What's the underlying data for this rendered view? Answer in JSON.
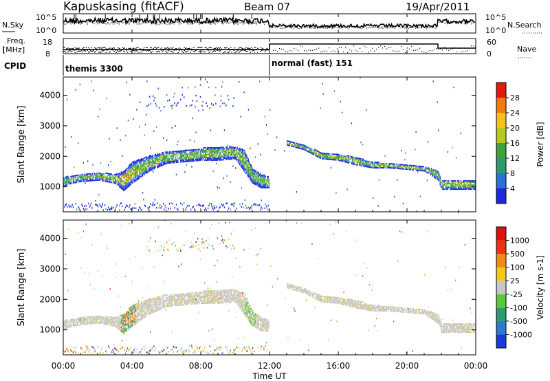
{
  "header": {
    "station": "Kapuskasing (fitACF)",
    "beam": "Beam 07",
    "date": "19/Apr/2011"
  },
  "top_panels": {
    "nsky_label": "N.Sky",
    "nsearch_label": "N.Search",
    "noise_ticks": [
      "10^5",
      "10^0"
    ],
    "freq_label": "Freq.",
    "freq_unit": "[MHz]",
    "freq_ticks": [
      "18",
      "8"
    ],
    "nave_label": "Nave",
    "nave_ticks": [
      "60",
      "0"
    ],
    "cpid_label": "CPID",
    "cpid_1": "themis 3300",
    "cpid_2": "normal (fast) 151"
  },
  "chart_data": [
    {
      "type": "heatmap",
      "name": "power",
      "ylabel": "Slant Range [km]",
      "yticks": [
        1000,
        2000,
        3000,
        4000
      ],
      "ylim": [
        180,
        4600
      ],
      "xlim": [
        0,
        24
      ],
      "colorbar_label": "Power [dB]",
      "colorbar_ticks": [
        "4",
        "8",
        "12",
        "16",
        "20",
        "24",
        "28"
      ],
      "colorbar_colors": [
        "#1e28d6",
        "#2b6fd8",
        "#2f9a6e",
        "#3fa03c",
        "#b7c91c",
        "#f2c21e",
        "#f07a14",
        "#e21a10"
      ],
      "band": [
        [
          0.0,
          1300,
          1000
        ],
        [
          0.5,
          1350,
          1100
        ],
        [
          1.0,
          1400,
          1150
        ],
        [
          2.0,
          1450,
          1200
        ],
        [
          3.0,
          1400,
          1100
        ],
        [
          3.5,
          1500,
          850
        ],
        [
          4.0,
          1800,
          1100
        ],
        [
          5.0,
          2000,
          1500
        ],
        [
          6.0,
          2150,
          1750
        ],
        [
          7.0,
          2200,
          1800
        ],
        [
          8.0,
          2250,
          1850
        ],
        [
          9.0,
          2300,
          1850
        ],
        [
          10.0,
          2300,
          1900
        ],
        [
          10.5,
          2200,
          1500
        ],
        [
          11.0,
          1600,
          1100
        ],
        [
          11.5,
          1400,
          950
        ],
        [
          12.0,
          1300,
          950
        ]
      ],
      "band2": [
        [
          13.0,
          2500,
          2350
        ],
        [
          14.0,
          2350,
          2200
        ],
        [
          15.0,
          2100,
          1900
        ],
        [
          16.0,
          2050,
          1850
        ],
        [
          17.0,
          1950,
          1700
        ],
        [
          18.0,
          1800,
          1600
        ],
        [
          19.0,
          1750,
          1600
        ],
        [
          20.0,
          1700,
          1550
        ],
        [
          21.0,
          1650,
          1500
        ],
        [
          21.8,
          1500,
          1200
        ],
        [
          22.0,
          1200,
          900
        ],
        [
          24.0,
          1200,
          900
        ]
      ]
    },
    {
      "type": "heatmap",
      "name": "velocity",
      "ylabel": "Slant Range [km]",
      "yticks": [
        1000,
        2000,
        3000,
        4000
      ],
      "ylim": [
        180,
        4600
      ],
      "xlim": [
        0,
        24
      ],
      "xlabel": "Time UT",
      "xticks": [
        "00:00",
        "04:00",
        "08:00",
        "12:00",
        "16:00",
        "20:00",
        "00:00"
      ],
      "xtick_values": [
        0,
        4,
        8,
        12,
        16,
        20,
        24
      ],
      "colorbar_label": "Velocity [m s-1]",
      "colorbar_ticks": [
        "1000",
        "500",
        "100",
        "25",
        "-25",
        "-100",
        "-500",
        "-1000"
      ],
      "colorbar_colors": [
        "#1e3ad6",
        "#2f7ad0",
        "#2f9a6e",
        "#5bc83a",
        "#c8c8c0",
        "#f0c81e",
        "#f08c14",
        "#e83214",
        "#e01010"
      ]
    }
  ]
}
